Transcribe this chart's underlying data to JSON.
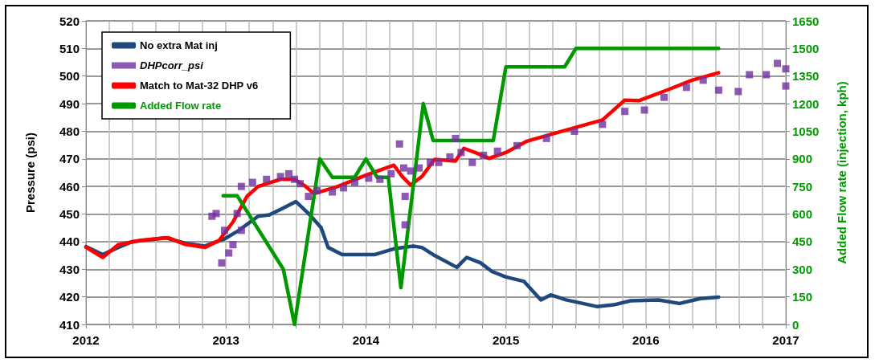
{
  "chart_data": {
    "type": "line",
    "xlabel": null,
    "ylabel": "Pressure (psi)",
    "y2label": "Added Flow rate (injection, kph)",
    "xlim": [
      2012,
      2017
    ],
    "xticks": [
      2012,
      {
        "value": 2012.1667,
        "label": null
      },
      {
        "value": 2012.3333,
        "label": null
      },
      {
        "value": 2012.5,
        "label": null
      },
      {
        "value": 2012.6667,
        "label": null
      },
      {
        "value": 2012.8333,
        "label": null
      },
      2013,
      {
        "value": 2013.1667,
        "label": null
      },
      {
        "value": 2013.3333,
        "label": null
      },
      {
        "value": 2013.5,
        "label": null
      },
      {
        "value": 2013.6667,
        "label": null
      },
      {
        "value": 2013.8333,
        "label": null
      },
      2014,
      {
        "value": 2014.1667,
        "label": null
      },
      {
        "value": 2014.3333,
        "label": null
      },
      {
        "value": 2014.5,
        "label": null
      },
      {
        "value": 2014.6667,
        "label": null
      },
      {
        "value": 2014.8333,
        "label": null
      },
      2015,
      {
        "value": 2015.1667,
        "label": null
      },
      {
        "value": 2015.3333,
        "label": null
      },
      {
        "value": 2015.5,
        "label": null
      },
      {
        "value": 2015.6667,
        "label": null
      },
      {
        "value": 2015.8333,
        "label": null
      },
      2016,
      {
        "value": 2016.1667,
        "label": null
      },
      {
        "value": 2016.3333,
        "label": null
      },
      {
        "value": 2016.5,
        "label": null
      },
      {
        "value": 2016.6667,
        "label": null
      },
      {
        "value": 2016.8333,
        "label": null
      },
      2017
    ],
    "ylim": [
      410,
      520
    ],
    "yticks": [
      410,
      420,
      430,
      440,
      450,
      460,
      470,
      480,
      490,
      500,
      510,
      520
    ],
    "y2lim": [
      0,
      1650
    ],
    "y2ticks": [
      0,
      150,
      300,
      450,
      600,
      750,
      900,
      1050,
      1200,
      1350,
      1500,
      1650
    ],
    "grid": true,
    "legend": "top left",
    "line_style": "solid",
    "series": [
      {
        "name": "No extra Mat inj",
        "type": "line",
        "marker": "none",
        "color": "#1f497d",
        "x": [
          2012.0,
          2012.12,
          2012.23,
          2012.33,
          2012.57,
          2012.71,
          2012.85,
          2012.99,
          2013.09,
          2013.23,
          2013.31,
          2013.39,
          2013.5,
          2013.59,
          2013.68,
          2013.73,
          2013.83,
          2014.06,
          2014.2,
          2014.34,
          2014.4,
          2014.49,
          2014.65,
          2014.72,
          2014.82,
          2014.9,
          2015.0,
          2015.13,
          2015.25,
          2015.32,
          2015.43,
          2015.65,
          2015.77,
          2015.89,
          2016.09,
          2016.24,
          2016.39,
          2016.52
        ],
        "values": [
          438.2,
          435.3,
          437.9,
          440,
          441.4,
          439.4,
          438.4,
          441,
          444,
          449.2,
          449.7,
          451.7,
          454.5,
          450.2,
          445.1,
          437.9,
          435.3,
          435.3,
          437.4,
          438.4,
          437.9,
          435,
          430.7,
          434.3,
          432.3,
          429.2,
          427.2,
          425.6,
          418.9,
          420.7,
          418.9,
          416.5,
          417.1,
          418.6,
          418.9,
          417.6,
          419.4,
          419.9
        ]
      },
      {
        "name": "DHPcorr_psi",
        "type": "scatter",
        "marker": "square",
        "color": "#7030a0",
        "x": [
          2012.9,
          2012.93,
          2012.97,
          2012.99,
          2013.02,
          2013.05,
          2013.08,
          2013.11,
          2013.11,
          2013.19,
          2013.29,
          2013.39,
          2013.45,
          2013.49,
          2013.53,
          2013.59,
          2013.65,
          2013.76,
          2013.84,
          2013.92,
          2014.02,
          2014.1,
          2014.18,
          2014.24,
          2014.27,
          2014.28,
          2014.28,
          2014.32,
          2014.38,
          2014.46,
          2014.52,
          2014.6,
          2014.64,
          2014.68,
          2014.76,
          2014.84,
          2014.94,
          2015.08,
          2015.29,
          2015.49,
          2015.69,
          2015.85,
          2015.99,
          2016.13,
          2016.29,
          2016.41,
          2016.52,
          2016.66,
          2016.74,
          2016.86,
          2016.94,
          2017.0,
          2017.0
        ],
        "values": [
          449.2,
          450.2,
          432.3,
          444.1,
          435.9,
          438.9,
          450.2,
          444.1,
          460,
          461.5,
          462.6,
          463.6,
          464.6,
          462.6,
          461,
          456.4,
          458.5,
          458,
          459.5,
          461.5,
          463,
          462.6,
          464.6,
          475.4,
          466.7,
          456.4,
          446.1,
          465.6,
          466.7,
          468.7,
          468.7,
          470.7,
          477.4,
          472.3,
          468.7,
          471.3,
          472.8,
          474.8,
          477.4,
          480,
          482.5,
          487.2,
          487.7,
          492.3,
          495.9,
          498.5,
          494.9,
          494.4,
          500.5,
          500.5,
          504.6,
          502.6,
          496.4
        ]
      },
      {
        "name": "Match to Mat-32 DHP v6",
        "type": "line",
        "marker": "none",
        "color": "#ff0000",
        "x": [
          2012.0,
          2012.12,
          2012.23,
          2012.39,
          2012.59,
          2012.71,
          2012.85,
          2012.95,
          2013.05,
          2013.15,
          2013.23,
          2013.39,
          2013.49,
          2013.57,
          2013.63,
          2013.8,
          2014.0,
          2014.2,
          2014.26,
          2014.32,
          2014.4,
          2014.49,
          2014.64,
          2014.7,
          2014.78,
          2014.88,
          2015.0,
          2015.15,
          2015.33,
          2015.69,
          2015.85,
          2015.95,
          2016.15,
          2016.33,
          2016.52
        ],
        "values": [
          438,
          434.3,
          438.9,
          440.5,
          441.4,
          439,
          437.9,
          440.4,
          447.1,
          456.4,
          460,
          462.6,
          462.6,
          460,
          457.4,
          460,
          464.1,
          467.7,
          463.6,
          460.5,
          463.6,
          469.8,
          469.2,
          473.8,
          472.3,
          470.2,
          472.3,
          476.4,
          479,
          484.1,
          491.3,
          491.1,
          494.9,
          498.5,
          501.2
        ]
      },
      {
        "name": "Added Flow rate",
        "type": "line",
        "marker": "none",
        "axis": "y2",
        "color": "#009900",
        "x": [
          2012.98,
          2013.08,
          2013.41,
          2013.49,
          2013.67,
          2013.76,
          2013.92,
          2014.0,
          2014.08,
          2014.16,
          2014.25,
          2014.41,
          2014.48,
          2014.91,
          2015.0,
          2015.42,
          2015.5,
          2016.52
        ],
        "values": [
          700,
          700,
          300,
          0,
          900,
          800,
          800,
          900,
          800,
          800,
          200,
          1200,
          1000,
          1000,
          1400,
          1400,
          1500,
          1500
        ]
      }
    ]
  }
}
